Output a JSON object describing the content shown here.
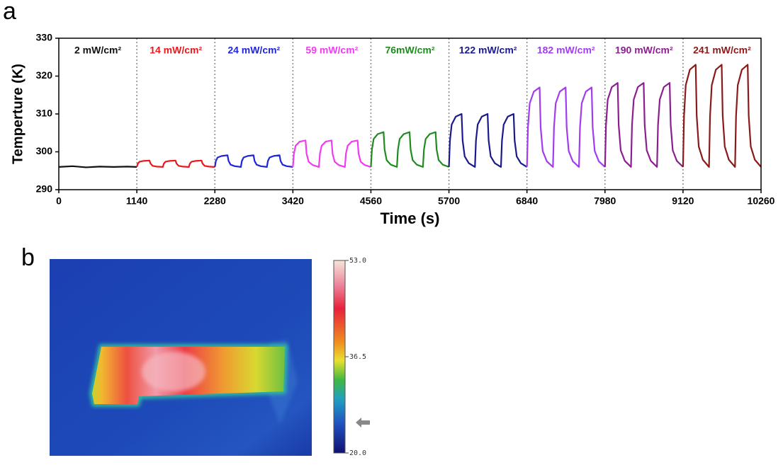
{
  "chart_data": {
    "type": "line",
    "panel_label": "a",
    "x_label": "Time (s)",
    "y_label": "Temperture (K)",
    "xlim": [
      0,
      10260
    ],
    "xticks": [
      0,
      1140,
      2280,
      3420,
      4560,
      5700,
      6840,
      7980,
      9120,
      10260
    ],
    "ylim": [
      290,
      330
    ],
    "yticks": [
      290,
      300,
      310,
      320,
      330
    ],
    "series": [
      {
        "name": "2 mW/cm²",
        "color": "#111111",
        "x": [
          0,
          200,
          400,
          600,
          800,
          1000,
          1140
        ],
        "values": [
          296,
          296.2,
          295.9,
          296.1,
          296,
          296.1,
          296
        ]
      },
      {
        "name": "14 mW/cm²",
        "color": "#e8191e",
        "x": [
          1140,
          1155,
          1180,
          1240,
          1325,
          1340,
          1370,
          1430,
          1520,
          1535,
          1560,
          1620,
          1705,
          1720,
          1750,
          1810,
          1900,
          1915,
          1940,
          2000,
          2085,
          2100,
          2130,
          2190,
          2280
        ],
        "values": [
          296,
          296.9,
          297.4,
          297.6,
          297.7,
          296.9,
          296.3,
          296.1,
          296,
          296.9,
          297.4,
          297.6,
          297.7,
          296.9,
          296.3,
          296.1,
          296,
          296.9,
          297.4,
          297.6,
          297.7,
          296.9,
          296.3,
          296.1,
          296
        ]
      },
      {
        "name": "24 mW/cm²",
        "color": "#1f26d6",
        "x": [
          2280,
          2295,
          2320,
          2380,
          2465,
          2480,
          2510,
          2570,
          2660,
          2675,
          2700,
          2760,
          2845,
          2860,
          2890,
          2950,
          3040,
          3055,
          3080,
          3140,
          3225,
          3240,
          3270,
          3330,
          3420
        ],
        "values": [
          296,
          297.6,
          298.5,
          298.9,
          299.1,
          297.6,
          296.6,
          296.2,
          296,
          297.6,
          298.5,
          298.9,
          299.1,
          297.6,
          296.6,
          296.2,
          296,
          297.6,
          298.5,
          298.9,
          299.1,
          297.6,
          296.6,
          296.2,
          296
        ]
      },
      {
        "name": "59 mW/cm²",
        "color": "#f03cf0",
        "x": [
          3420,
          3435,
          3460,
          3520,
          3605,
          3620,
          3650,
          3710,
          3800,
          3815,
          3840,
          3900,
          3985,
          4000,
          4030,
          4090,
          4180,
          4195,
          4220,
          4280,
          4365,
          4380,
          4410,
          4470,
          4560
        ],
        "values": [
          296,
          299.5,
          301.6,
          302.7,
          303,
          299.5,
          297.4,
          296.5,
          296,
          299.5,
          301.6,
          302.7,
          303,
          299.5,
          297.4,
          296.5,
          296,
          299.5,
          301.6,
          302.7,
          303,
          299.5,
          297.4,
          296.5,
          296
        ]
      },
      {
        "name": "76mW/cm²",
        "color": "#1f8c1f",
        "x": [
          4560,
          4575,
          4600,
          4660,
          4745,
          4760,
          4790,
          4850,
          4940,
          4955,
          4980,
          5040,
          5125,
          5140,
          5170,
          5230,
          5320,
          5335,
          5360,
          5420,
          5505,
          5520,
          5550,
          5610,
          5700
        ],
        "values": [
          296,
          300.6,
          303.4,
          304.7,
          305.2,
          300.6,
          297.8,
          296.6,
          296,
          300.6,
          303.4,
          304.7,
          305.2,
          300.6,
          297.8,
          296.6,
          296,
          300.6,
          303.4,
          304.7,
          305.2,
          300.6,
          297.8,
          296.6,
          296
        ]
      },
      {
        "name": "122 mW/cm²",
        "color": "#1a1a8c",
        "x": [
          5700,
          5715,
          5740,
          5800,
          5885,
          5900,
          5930,
          5990,
          6080,
          6095,
          6120,
          6180,
          6265,
          6280,
          6310,
          6370,
          6460,
          6475,
          6500,
          6560,
          6645,
          6660,
          6690,
          6750,
          6840
        ],
        "values": [
          296,
          303,
          307.2,
          309.3,
          310,
          303,
          298.8,
          297,
          296,
          303,
          307.2,
          309.3,
          310,
          303,
          298.8,
          297,
          296,
          303,
          307.2,
          309.3,
          310,
          303,
          298.8,
          297,
          296
        ]
      },
      {
        "name": "182 mW/cm²",
        "color": "#a23cf0",
        "x": [
          6840,
          6855,
          6880,
          6940,
          7025,
          7040,
          7070,
          7130,
          7220,
          7235,
          7260,
          7320,
          7405,
          7420,
          7450,
          7510,
          7600,
          7615,
          7640,
          7700,
          7785,
          7800,
          7830,
          7890,
          7980
        ],
        "values": [
          296,
          306.5,
          312.8,
          315.9,
          317,
          306.5,
          300.2,
          297.5,
          296,
          306.5,
          312.8,
          315.9,
          317,
          306.5,
          300.2,
          297.5,
          296,
          306.5,
          312.8,
          315.9,
          317,
          306.5,
          300.2,
          297.5,
          296
        ]
      },
      {
        "name": "190 mW/cm²",
        "color": "#8b1f8f",
        "x": [
          7980,
          7995,
          8020,
          8080,
          8165,
          8180,
          8210,
          8270,
          8360,
          8375,
          8400,
          8460,
          8545,
          8560,
          8590,
          8650,
          8740,
          8755,
          8780,
          8840,
          8925,
          8940,
          8970,
          9030,
          9120
        ],
        "values": [
          296,
          307.1,
          313.8,
          317.1,
          318.2,
          307.1,
          300.4,
          297.6,
          296,
          307.1,
          313.8,
          317.1,
          318.2,
          307.1,
          300.4,
          297.6,
          296,
          307.1,
          313.8,
          317.1,
          318.2,
          307.1,
          300.4,
          297.6,
          296
        ]
      },
      {
        "name": "241 mW/cm²",
        "color": "#8b1a1a",
        "x": [
          9120,
          9135,
          9160,
          9220,
          9305,
          9320,
          9350,
          9410,
          9500,
          9515,
          9540,
          9600,
          9685,
          9700,
          9730,
          9790,
          9880,
          9895,
          9920,
          9980,
          10065,
          10080,
          10110,
          10170,
          10260
        ],
        "values": [
          296,
          309.5,
          317.6,
          321.7,
          323,
          309.5,
          301.4,
          297.9,
          296,
          309.5,
          317.6,
          321.7,
          323,
          309.5,
          301.4,
          297.9,
          296,
          309.5,
          317.6,
          321.7,
          323,
          309.5,
          301.4,
          297.9,
          296
        ]
      }
    ]
  },
  "image": {
    "panel_label": "b",
    "colorbar_ticks": [
      {
        "value": 53,
        "label": "53.0"
      },
      {
        "value": 36.5,
        "label": "36.5"
      },
      {
        "value": 20,
        "label": "20.0"
      }
    ]
  }
}
